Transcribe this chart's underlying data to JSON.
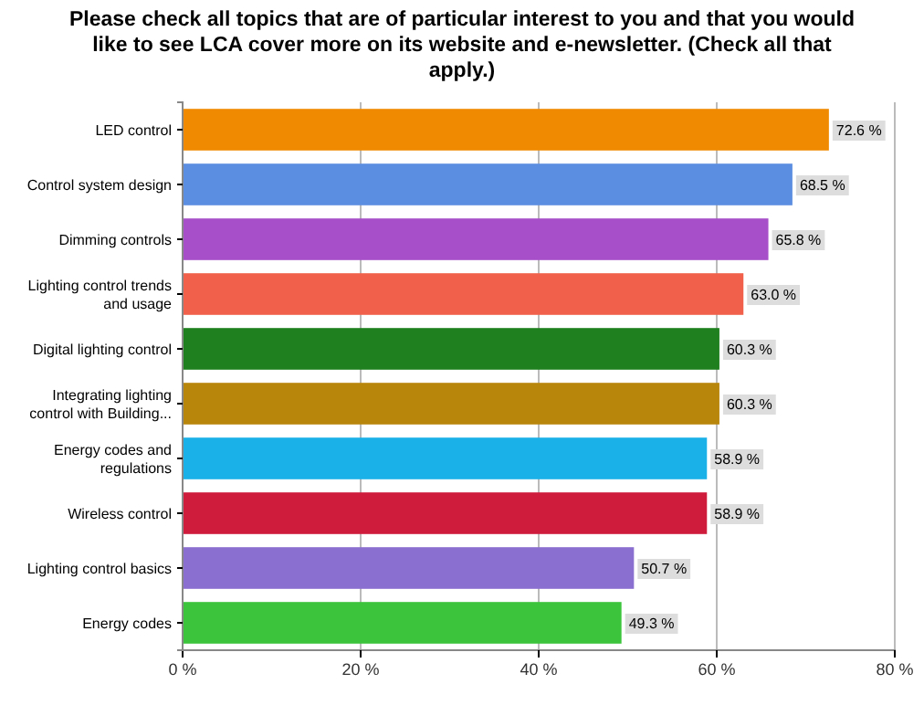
{
  "chart_data": {
    "type": "bar",
    "orientation": "horizontal",
    "title": "Please check all topics that are of particular interest to you and that you would like to see LCA cover more on its website and e-newsletter. (Check all that apply.)",
    "categories": [
      "LED control",
      "Control system design",
      "Dimming controls",
      "Lighting control trends and usage",
      "Digital lighting control",
      "Integrating lighting control with Building...",
      "Energy codes and regulations",
      "Wireless control",
      "Lighting control basics",
      "Energy codes"
    ],
    "values": [
      72.6,
      68.5,
      65.8,
      63.0,
      60.3,
      60.3,
      58.9,
      58.9,
      50.7,
      49.3
    ],
    "value_labels": [
      "72.6 %",
      "68.5 %",
      "65.8 %",
      "63.0 %",
      "60.3 %",
      "60.3 %",
      "58.9 %",
      "58.9 %",
      "50.7 %",
      "49.3 %"
    ],
    "colors": [
      "#f08a00",
      "#5b8de0",
      "#a64fc9",
      "#f0604a",
      "#1f801f",
      "#b8860b",
      "#1ab0e8",
      "#d01c3c",
      "#8a6fd0",
      "#3cc43c"
    ],
    "xlim": [
      0,
      80
    ],
    "xticks": [
      {
        "value": 0,
        "label": "0 %"
      },
      {
        "value": 20,
        "label": "20 %"
      },
      {
        "value": 40,
        "label": "40 %"
      },
      {
        "value": 60,
        "label": "60 %"
      },
      {
        "value": 80,
        "label": "80 %"
      }
    ],
    "grid": "x"
  }
}
